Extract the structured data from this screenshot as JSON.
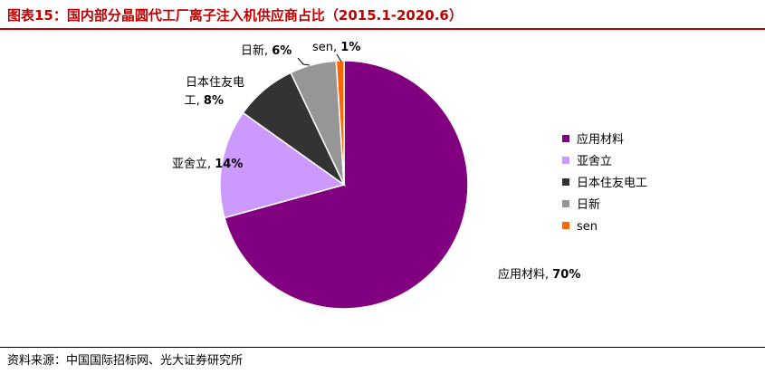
{
  "title": "图表15：国内部分晶圆代工厂离子注入机供应商占比（2015.1-2020.6）",
  "source": "资料来源：中国国际招标网、光大证券研究所",
  "chart_data": {
    "type": "pie",
    "series": [
      {
        "name": "应用材料",
        "value": 70,
        "label": "应用材料, 70%",
        "color": "#800080"
      },
      {
        "name": "亚舍立",
        "value": 14,
        "label": "亚舍立, 14%",
        "color": "#cc99ff"
      },
      {
        "name": "日本住友电工",
        "value": 8,
        "label": "日本住友电工, 8%",
        "label_line1": "日本住友电",
        "label_line2": "工, 8%",
        "color": "#333333"
      },
      {
        "name": "日新",
        "value": 6,
        "label": "日新, 6%",
        "color": "#969696"
      },
      {
        "name": "sen",
        "value": 1,
        "label": "sen, 1%",
        "color": "#ff6600"
      }
    ],
    "legend_position": "right"
  }
}
